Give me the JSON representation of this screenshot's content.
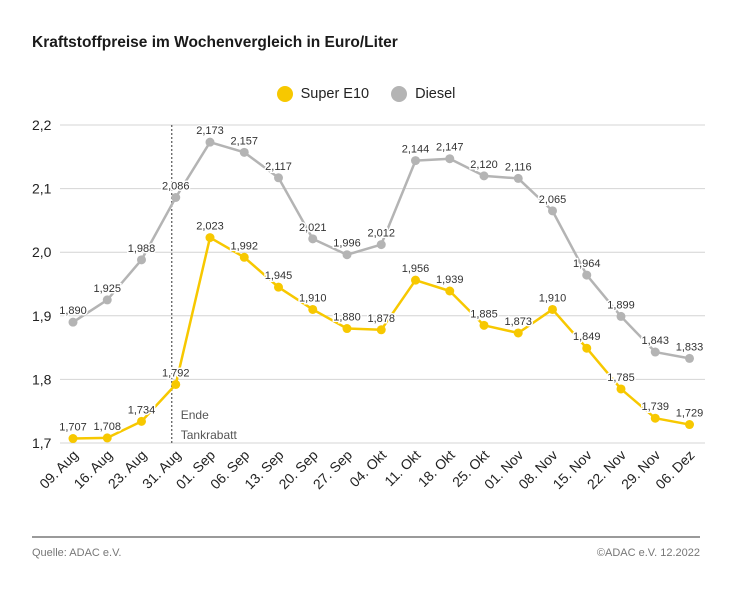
{
  "title": "Kraftstoffpreise im Wochenvergleich in Euro/Liter",
  "footer": {
    "source": "Quelle: ADAC e.V.",
    "copyright": "©ADAC e.V.  12.2022"
  },
  "colors": {
    "super": "#f7c800",
    "diesel": "#b4b4b4",
    "grid": "#d4d4d4",
    "marker": "#555555"
  },
  "chart_data": {
    "type": "line",
    "categories": [
      "09. Aug",
      "16. Aug",
      "23. Aug",
      "31. Aug",
      "01. Sep",
      "06. Sep",
      "13. Sep",
      "20. Sep",
      "27. Sep",
      "04. Okt",
      "11. Okt",
      "18. Okt",
      "25. Okt",
      "01. Nov",
      "08. Nov",
      "15. Nov",
      "22. Nov",
      "29. Nov",
      "06. Dez"
    ],
    "series": [
      {
        "name": "Super E10",
        "color": "#f7c800",
        "values": [
          1.707,
          1.708,
          1.734,
          1.792,
          2.023,
          1.992,
          1.945,
          1.91,
          1.88,
          1.878,
          1.956,
          1.939,
          1.885,
          1.873,
          1.91,
          1.849,
          1.785,
          1.739,
          1.729
        ]
      },
      {
        "name": "Diesel",
        "color": "#b4b4b4",
        "values": [
          1.89,
          1.925,
          1.988,
          2.086,
          2.173,
          2.157,
          2.117,
          2.021,
          1.996,
          2.012,
          2.144,
          2.147,
          2.12,
          2.116,
          2.065,
          1.964,
          1.899,
          1.843,
          1.833
        ]
      }
    ],
    "ylim": [
      1.7,
      2.2
    ],
    "yticks": [
      1.7,
      1.8,
      1.9,
      2.0,
      2.1,
      2.2
    ],
    "ytick_labels": [
      "1,7",
      "1,8",
      "1,9",
      "2,0",
      "2,1",
      "2,2"
    ],
    "legend": "top-center",
    "grid": true,
    "annotation": {
      "category": "31. Aug",
      "line1": "Ende",
      "line2": "Tankrabatt"
    }
  }
}
